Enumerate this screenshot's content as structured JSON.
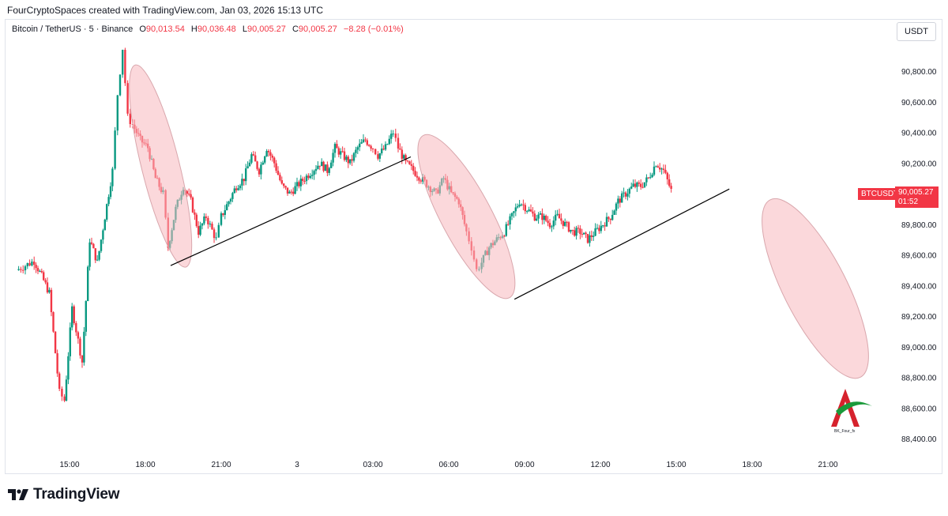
{
  "header": {
    "credit": "FourCryptoSpaces created with TradingView.com, Jan 03, 2026 15:13 UTC"
  },
  "legend": {
    "symbol": "Bitcoin / TetherUS · 5 · Binance",
    "open_label": "O",
    "open": "90,013.54",
    "high_label": "H",
    "high": "90,036.48",
    "low_label": "L",
    "low": "90,005.27",
    "close_label": "C",
    "close": "90,005.27",
    "change": "−8.28 (−0.01%)"
  },
  "currency": "USDT",
  "price_tag": {
    "symbol": "BTCUSDT",
    "price": "90,005.27",
    "countdown": "01:52"
  },
  "brand": {
    "name": "TradingView"
  },
  "watermark": {
    "text": "BK_Four_fx"
  },
  "colors": {
    "up": "#089981",
    "down": "#f23645",
    "ellipse": "#f7b8be",
    "line": "#000000"
  },
  "chart_data": {
    "type": "candlestick",
    "ylim": [
      88300,
      91050
    ],
    "y_ticks": [
      "90,800.00",
      "90,600.00",
      "90,400.00",
      "90,200.00",
      "90,000.00",
      "89,800.00",
      "89,600.00",
      "89,400.00",
      "89,200.00",
      "89,000.00",
      "88,800.00",
      "88,600.00",
      "88,400.00"
    ],
    "y_tick_values": [
      90800,
      90600,
      90400,
      90200,
      90000,
      89800,
      89600,
      89400,
      89200,
      89000,
      88800,
      88600,
      88400
    ],
    "x_ticks": [
      "15:00",
      "18:00",
      "21:00",
      "3",
      "03:00",
      "06:00",
      "09:00",
      "12:00",
      "15:00",
      "18:00",
      "21:00"
    ],
    "x_tick_hours": [
      15,
      18,
      21,
      24,
      27,
      30,
      33,
      36,
      39,
      42,
      45
    ],
    "series_close_path": [
      [
        12.9,
        89500
      ],
      [
        13.6,
        89560
      ],
      [
        13.9,
        89460
      ],
      [
        14.2,
        89350
      ],
      [
        14.6,
        88700
      ],
      [
        14.8,
        88650
      ],
      [
        15.1,
        89250
      ],
      [
        15.5,
        88900
      ],
      [
        15.8,
        89700
      ],
      [
        16.1,
        89550
      ],
      [
        16.4,
        89850
      ],
      [
        16.7,
        90150
      ],
      [
        16.9,
        90650
      ],
      [
        17.1,
        90950
      ],
      [
        17.3,
        90500
      ],
      [
        17.5,
        90450
      ],
      [
        17.8,
        90350
      ],
      [
        18.1,
        90300
      ],
      [
        18.4,
        90100
      ],
      [
        18.7,
        90000
      ],
      [
        18.9,
        89650
      ],
      [
        19.2,
        89900
      ],
      [
        19.5,
        90050
      ],
      [
        19.8,
        89950
      ],
      [
        20.1,
        89750
      ],
      [
        20.4,
        89850
      ],
      [
        20.8,
        89700
      ],
      [
        21.0,
        89850
      ],
      [
        21.3,
        89950
      ],
      [
        21.6,
        90050
      ],
      [
        21.9,
        90100
      ],
      [
        22.2,
        90250
      ],
      [
        22.5,
        90150
      ],
      [
        22.8,
        90300
      ],
      [
        23.1,
        90200
      ],
      [
        23.4,
        90050
      ],
      [
        23.7,
        90000
      ],
      [
        24.0,
        90050
      ],
      [
        24.3,
        90100
      ],
      [
        24.6,
        90150
      ],
      [
        24.9,
        90200
      ],
      [
        25.2,
        90150
      ],
      [
        25.5,
        90300
      ],
      [
        25.8,
        90250
      ],
      [
        26.1,
        90200
      ],
      [
        26.4,
        90300
      ],
      [
        26.7,
        90350
      ],
      [
        27.0,
        90300
      ],
      [
        27.2,
        90250
      ],
      [
        27.5,
        90300
      ],
      [
        27.8,
        90400
      ],
      [
        28.0,
        90300
      ],
      [
        28.3,
        90200
      ],
      [
        28.6,
        90150
      ],
      [
        28.9,
        90100
      ],
      [
        29.2,
        90050
      ],
      [
        29.5,
        90000
      ],
      [
        29.8,
        90100
      ],
      [
        30.1,
        90000
      ],
      [
        30.4,
        89950
      ],
      [
        30.7,
        89750
      ],
      [
        30.9,
        89650
      ],
      [
        31.1,
        89500
      ],
      [
        31.3,
        89550
      ],
      [
        31.6,
        89650
      ],
      [
        31.9,
        89700
      ],
      [
        32.2,
        89750
      ],
      [
        32.5,
        89850
      ],
      [
        32.8,
        89950
      ],
      [
        33.1,
        89900
      ],
      [
        33.4,
        89850
      ],
      [
        33.7,
        89850
      ],
      [
        34.0,
        89800
      ],
      [
        34.3,
        89850
      ],
      [
        34.6,
        89800
      ],
      [
        34.9,
        89750
      ],
      [
        35.2,
        89750
      ],
      [
        35.5,
        89700
      ],
      [
        35.8,
        89750
      ],
      [
        36.1,
        89800
      ],
      [
        36.4,
        89850
      ],
      [
        36.7,
        89950
      ],
      [
        37.0,
        90000
      ],
      [
        37.3,
        90050
      ],
      [
        37.6,
        90050
      ],
      [
        37.9,
        90100
      ],
      [
        38.2,
        90200
      ],
      [
        38.5,
        90150
      ],
      [
        38.8,
        90020
      ]
    ],
    "trendlines": [
      {
        "from": [
          19.0,
          89530
        ],
        "to": [
          28.5,
          90240
        ]
      },
      {
        "from": [
          32.6,
          89310
        ],
        "to": [
          41.1,
          90030
        ]
      }
    ],
    "ellipses": [
      {
        "center": [
          18.6,
          90180
        ],
        "rx_hours": 0.75,
        "ry_price": 680,
        "tilt_deg": -14
      },
      {
        "center": [
          30.7,
          89850
        ],
        "rx_hours": 1.0,
        "ry_price": 600,
        "tilt_deg": -28
      },
      {
        "center": [
          44.5,
          89380
        ],
        "rx_hours": 1.25,
        "ry_price": 650,
        "tilt_deg": -27
      }
    ]
  }
}
